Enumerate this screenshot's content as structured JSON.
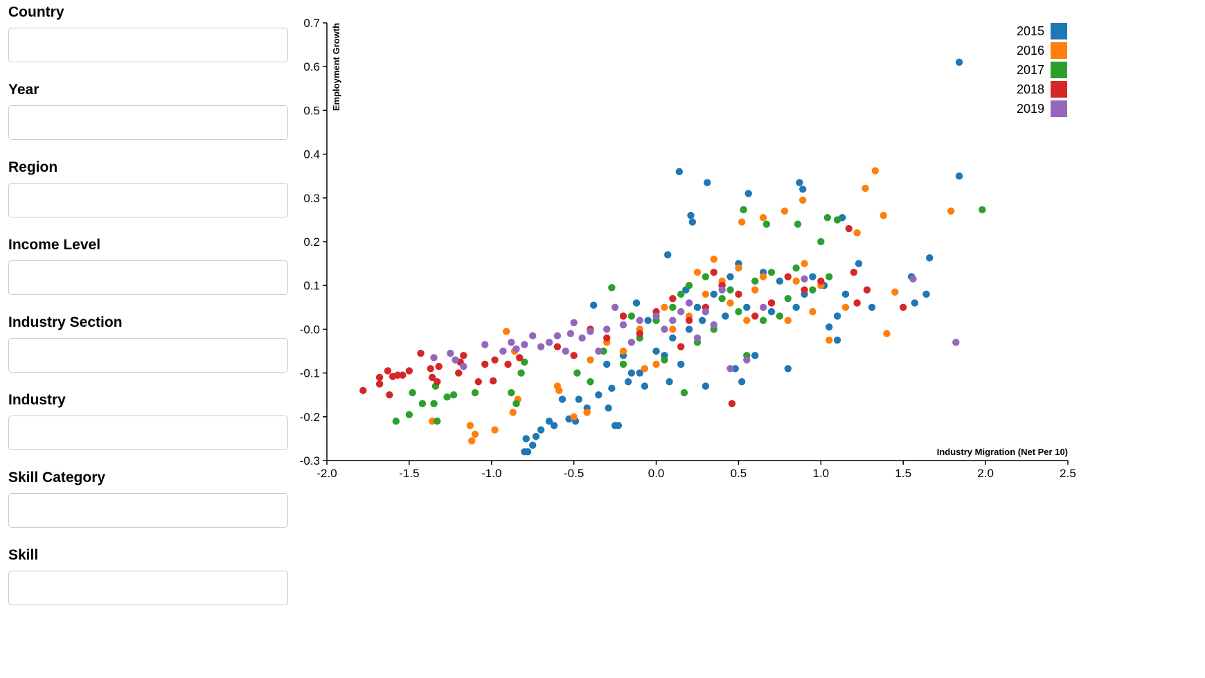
{
  "filters": [
    {
      "label": "Country",
      "value": ""
    },
    {
      "label": "Year",
      "value": ""
    },
    {
      "label": "Region",
      "value": ""
    },
    {
      "label": "Income Level",
      "value": ""
    },
    {
      "label": "Industry Section",
      "value": ""
    },
    {
      "label": "Industry",
      "value": ""
    },
    {
      "label": "Skill Category",
      "value": ""
    },
    {
      "label": "Skill",
      "value": ""
    }
  ],
  "chart_data": {
    "type": "scatter",
    "xlabel": "Industry Migration (Net Per 10)",
    "ylabel": "Employment Growth",
    "xlim": [
      -2.0,
      2.5
    ],
    "ylim": [
      -0.3,
      0.7
    ],
    "x_ticks": [
      -2.0,
      -1.5,
      -1.0,
      -0.5,
      0.0,
      0.5,
      1.0,
      1.5,
      2.0,
      2.5
    ],
    "y_ticks": [
      -0.3,
      -0.2,
      -0.1,
      0.0,
      0.1,
      0.2,
      0.3,
      0.4,
      0.5,
      0.6,
      0.7
    ],
    "x_tick_labels": [
      "-2.0",
      "-1.5",
      "-1.0",
      "-0.5",
      "0.0",
      "0.5",
      "1.0",
      "1.5",
      "2.0",
      "2.5"
    ],
    "y_tick_labels": [
      "-0.3",
      "-0.2",
      "-0.1",
      "-0.0",
      "0.1",
      "0.2",
      "0.3",
      "0.4",
      "0.5",
      "0.6",
      "0.7"
    ],
    "grid": false,
    "legend_position": "top-right",
    "series": [
      {
        "name": "2015",
        "color": "#1f77b4",
        "points": [
          [
            1.84,
            0.61
          ],
          [
            0.14,
            0.36
          ],
          [
            0.31,
            0.335
          ],
          [
            0.56,
            0.31
          ],
          [
            0.87,
            0.335
          ],
          [
            0.89,
            0.32
          ],
          [
            1.84,
            0.35
          ],
          [
            0.21,
            0.26
          ],
          [
            0.22,
            0.245
          ],
          [
            1.13,
            0.255
          ],
          [
            0.07,
            0.17
          ],
          [
            1.23,
            0.15
          ],
          [
            1.66,
            0.163
          ],
          [
            1.55,
            0.12
          ],
          [
            1.64,
            0.08
          ],
          [
            1.57,
            0.06
          ],
          [
            1.31,
            0.05
          ],
          [
            1.1,
            0.03
          ],
          [
            1.05,
            0.005
          ],
          [
            1.1,
            -0.025
          ],
          [
            1.02,
            0.1
          ],
          [
            0.85,
            0.05
          ],
          [
            0.55,
            0.05
          ],
          [
            -0.38,
            0.055
          ],
          [
            -0.12,
            0.06
          ],
          [
            0.18,
            0.09
          ],
          [
            0.6,
            -0.06
          ],
          [
            0.8,
            -0.09
          ],
          [
            0.3,
            -0.13
          ],
          [
            0.48,
            -0.09
          ],
          [
            0.52,
            -0.12
          ],
          [
            0.08,
            -0.12
          ],
          [
            -0.07,
            -0.13
          ],
          [
            -0.17,
            -0.12
          ],
          [
            -0.27,
            -0.135
          ],
          [
            -0.35,
            -0.15
          ],
          [
            -0.29,
            -0.18
          ],
          [
            -0.25,
            -0.22
          ],
          [
            -0.23,
            -0.22
          ],
          [
            -0.42,
            -0.18
          ],
          [
            -0.47,
            -0.16
          ],
          [
            -0.49,
            -0.21
          ],
          [
            -0.53,
            -0.205
          ],
          [
            -0.57,
            -0.16
          ],
          [
            -0.65,
            -0.21
          ],
          [
            -0.62,
            -0.22
          ],
          [
            -0.7,
            -0.23
          ],
          [
            -0.73,
            -0.245
          ],
          [
            -0.79,
            -0.25
          ],
          [
            -0.8,
            -0.28
          ],
          [
            -0.78,
            -0.28
          ],
          [
            -0.75,
            -0.265
          ],
          [
            -0.1,
            -0.1
          ],
          [
            0.0,
            -0.05
          ],
          [
            0.1,
            -0.02
          ],
          [
            0.2,
            0.0
          ],
          [
            0.25,
            0.05
          ],
          [
            0.35,
            0.08
          ],
          [
            0.4,
            0.1
          ],
          [
            0.45,
            0.12
          ],
          [
            0.5,
            0.15
          ],
          [
            0.65,
            0.13
          ],
          [
            0.75,
            0.11
          ],
          [
            0.9,
            0.08
          ],
          [
            -0.05,
            0.02
          ],
          [
            0.05,
            -0.06
          ],
          [
            0.15,
            -0.08
          ],
          [
            0.28,
            0.02
          ],
          [
            0.42,
            0.03
          ],
          [
            -0.3,
            -0.08
          ],
          [
            -0.2,
            -0.06
          ],
          [
            -0.15,
            -0.1
          ],
          [
            0.7,
            0.04
          ],
          [
            0.95,
            0.12
          ],
          [
            1.15,
            0.08
          ]
        ]
      },
      {
        "name": "2016",
        "color": "#ff7f0e",
        "points": [
          [
            1.33,
            0.362
          ],
          [
            1.27,
            0.322
          ],
          [
            0.89,
            0.295
          ],
          [
            1.79,
            0.27
          ],
          [
            1.38,
            0.26
          ],
          [
            0.78,
            0.27
          ],
          [
            0.65,
            0.255
          ],
          [
            0.52,
            0.245
          ],
          [
            1.22,
            0.22
          ],
          [
            1.45,
            0.085
          ],
          [
            1.4,
            -0.01
          ],
          [
            1.05,
            -0.025
          ],
          [
            -0.91,
            -0.005
          ],
          [
            -0.86,
            -0.05
          ],
          [
            -1.13,
            -0.22
          ],
          [
            -1.12,
            -0.255
          ],
          [
            -1.1,
            -0.24
          ],
          [
            -0.98,
            -0.23
          ],
          [
            -1.36,
            -0.21
          ],
          [
            -0.87,
            -0.19
          ],
          [
            -0.84,
            -0.16
          ],
          [
            -0.59,
            -0.14
          ],
          [
            -0.6,
            -0.13
          ],
          [
            -0.42,
            -0.19
          ],
          [
            -0.5,
            -0.2
          ],
          [
            -0.07,
            -0.09
          ],
          [
            0.0,
            -0.08
          ],
          [
            0.1,
            0.0
          ],
          [
            0.2,
            0.03
          ],
          [
            0.3,
            0.08
          ],
          [
            0.4,
            0.11
          ],
          [
            0.5,
            0.14
          ],
          [
            0.6,
            0.09
          ],
          [
            0.7,
            0.06
          ],
          [
            0.8,
            0.02
          ],
          [
            0.9,
            0.15
          ],
          [
            1.0,
            0.1
          ],
          [
            -0.2,
            -0.05
          ],
          [
            -0.3,
            -0.03
          ],
          [
            -0.4,
            -0.07
          ],
          [
            0.25,
            0.13
          ],
          [
            0.35,
            0.16
          ],
          [
            0.15,
            -0.04
          ],
          [
            0.55,
            0.02
          ],
          [
            0.85,
            0.11
          ],
          [
            -0.1,
            0.0
          ],
          [
            0.05,
            0.05
          ],
          [
            0.45,
            0.06
          ],
          [
            0.65,
            0.12
          ],
          [
            0.95,
            0.04
          ],
          [
            1.15,
            0.05
          ]
        ]
      },
      {
        "name": "2017",
        "color": "#2ca02c",
        "points": [
          [
            1.98,
            0.273
          ],
          [
            0.53,
            0.273
          ],
          [
            0.67,
            0.24
          ],
          [
            0.86,
            0.24
          ],
          [
            1.04,
            0.255
          ],
          [
            1.1,
            0.25
          ],
          [
            1.0,
            0.2
          ],
          [
            0.17,
            -0.145
          ],
          [
            -1.58,
            -0.21
          ],
          [
            -1.33,
            -0.21
          ],
          [
            -1.5,
            -0.195
          ],
          [
            -1.48,
            -0.145
          ],
          [
            -1.42,
            -0.17
          ],
          [
            -1.35,
            -0.17
          ],
          [
            -1.34,
            -0.13
          ],
          [
            -1.27,
            -0.155
          ],
          [
            -1.23,
            -0.15
          ],
          [
            -1.1,
            -0.145
          ],
          [
            -0.85,
            -0.17
          ],
          [
            -0.88,
            -0.145
          ],
          [
            -0.82,
            -0.1
          ],
          [
            -0.8,
            -0.075
          ],
          [
            -0.48,
            -0.1
          ],
          [
            -0.27,
            0.095
          ],
          [
            -0.32,
            -0.05
          ],
          [
            -0.1,
            -0.02
          ],
          [
            0.0,
            0.02
          ],
          [
            0.1,
            0.05
          ],
          [
            0.2,
            0.1
          ],
          [
            0.3,
            0.12
          ],
          [
            0.4,
            0.07
          ],
          [
            0.5,
            0.04
          ],
          [
            0.6,
            0.11
          ],
          [
            0.7,
            0.13
          ],
          [
            0.8,
            0.07
          ],
          [
            0.95,
            0.09
          ],
          [
            -0.2,
            -0.08
          ],
          [
            0.25,
            -0.03
          ],
          [
            0.35,
            0.0
          ],
          [
            0.45,
            0.09
          ],
          [
            0.15,
            0.08
          ],
          [
            -0.4,
            -0.12
          ],
          [
            0.55,
            -0.06
          ],
          [
            0.75,
            0.03
          ],
          [
            0.05,
            -0.07
          ],
          [
            -0.15,
            0.03
          ],
          [
            1.05,
            0.12
          ],
          [
            0.65,
            0.02
          ],
          [
            0.85,
            0.14
          ]
        ]
      },
      {
        "name": "2018",
        "color": "#d62728",
        "points": [
          [
            -1.78,
            -0.14
          ],
          [
            -1.68,
            -0.125
          ],
          [
            -1.68,
            -0.11
          ],
          [
            -1.63,
            -0.095
          ],
          [
            -1.62,
            -0.15
          ],
          [
            -1.6,
            -0.108
          ],
          [
            -1.57,
            -0.105
          ],
          [
            -1.54,
            -0.105
          ],
          [
            -1.5,
            -0.095
          ],
          [
            -1.43,
            -0.055
          ],
          [
            -1.37,
            -0.09
          ],
          [
            -1.36,
            -0.11
          ],
          [
            -1.33,
            -0.12
          ],
          [
            -1.32,
            -0.085
          ],
          [
            -1.2,
            -0.1
          ],
          [
            -1.19,
            -0.075
          ],
          [
            -1.17,
            -0.06
          ],
          [
            -1.08,
            -0.12
          ],
          [
            -1.04,
            -0.08
          ],
          [
            -0.98,
            -0.07
          ],
          [
            -0.99,
            -0.118
          ],
          [
            -0.9,
            -0.08
          ],
          [
            -0.83,
            -0.065
          ],
          [
            0.46,
            -0.17
          ],
          [
            1.5,
            0.05
          ],
          [
            1.2,
            0.13
          ],
          [
            1.17,
            0.23
          ],
          [
            1.22,
            0.06
          ],
          [
            1.28,
            0.09
          ],
          [
            1.0,
            0.11
          ],
          [
            0.9,
            0.09
          ],
          [
            -0.4,
            0.0
          ],
          [
            -0.3,
            -0.02
          ],
          [
            -0.2,
            0.03
          ],
          [
            -0.1,
            -0.01
          ],
          [
            0.0,
            0.04
          ],
          [
            0.1,
            0.07
          ],
          [
            0.2,
            0.02
          ],
          [
            0.3,
            0.05
          ],
          [
            0.4,
            0.1
          ],
          [
            0.5,
            0.08
          ],
          [
            0.6,
            0.03
          ],
          [
            0.7,
            0.06
          ],
          [
            -0.5,
            -0.06
          ],
          [
            -0.6,
            -0.04
          ],
          [
            0.15,
            -0.04
          ],
          [
            0.35,
            0.13
          ],
          [
            0.8,
            0.12
          ]
        ]
      },
      {
        "name": "2019",
        "color": "#9467bd",
        "points": [
          [
            1.82,
            -0.03
          ],
          [
            1.56,
            0.115
          ],
          [
            0.9,
            0.115
          ],
          [
            -1.35,
            -0.065
          ],
          [
            -1.25,
            -0.055
          ],
          [
            -1.22,
            -0.07
          ],
          [
            -1.17,
            -0.085
          ],
          [
            -1.04,
            -0.035
          ],
          [
            -0.93,
            -0.05
          ],
          [
            -0.88,
            -0.03
          ],
          [
            -0.85,
            -0.045
          ],
          [
            -0.8,
            -0.035
          ],
          [
            -0.75,
            -0.015
          ],
          [
            -0.7,
            -0.04
          ],
          [
            -0.65,
            -0.03
          ],
          [
            -0.6,
            -0.015
          ],
          [
            -0.52,
            -0.01
          ],
          [
            -0.5,
            0.015
          ],
          [
            -0.45,
            -0.02
          ],
          [
            -0.4,
            -0.005
          ],
          [
            -0.3,
            0.0
          ],
          [
            -0.2,
            0.01
          ],
          [
            -0.1,
            0.02
          ],
          [
            0.0,
            0.03
          ],
          [
            0.1,
            0.02
          ],
          [
            0.2,
            0.06
          ],
          [
            0.3,
            0.04
          ],
          [
            0.45,
            -0.09
          ],
          [
            0.55,
            -0.07
          ],
          [
            -0.25,
            0.05
          ],
          [
            -0.15,
            -0.03
          ],
          [
            0.05,
            0.0
          ],
          [
            0.15,
            0.04
          ],
          [
            0.25,
            -0.02
          ],
          [
            0.35,
            0.01
          ],
          [
            -0.35,
            -0.05
          ],
          [
            0.4,
            0.09
          ],
          [
            0.65,
            0.05
          ],
          [
            -0.55,
            -0.05
          ]
        ]
      }
    ]
  }
}
